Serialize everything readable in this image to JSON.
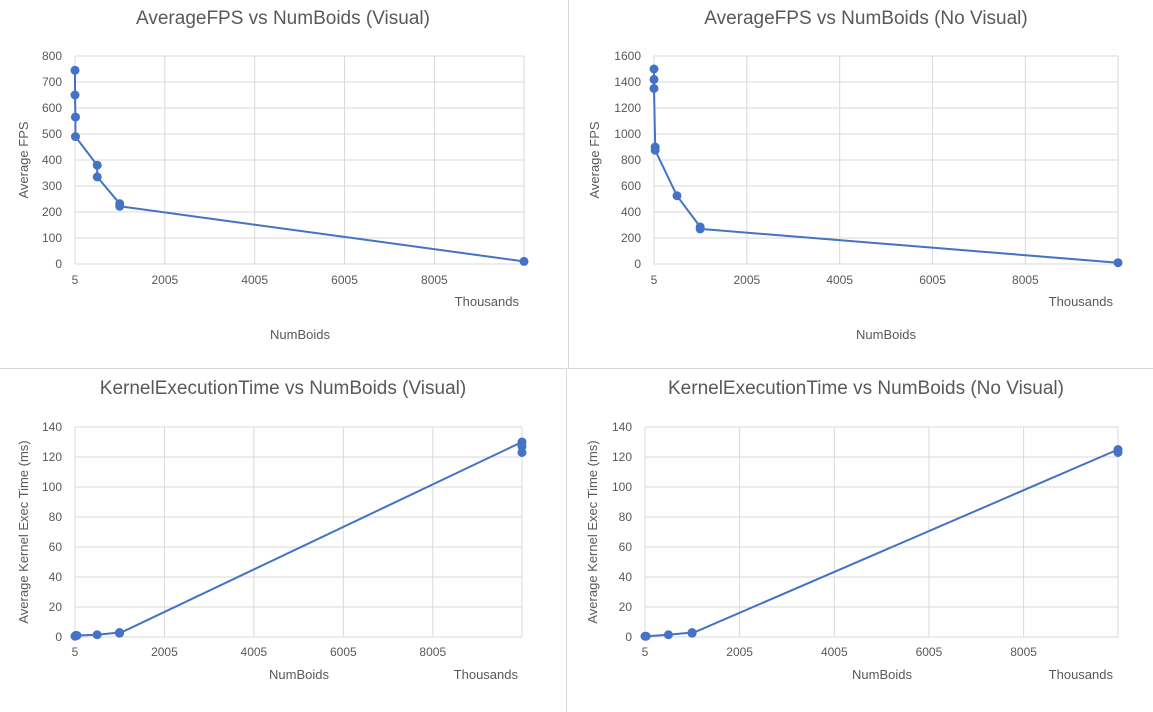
{
  "chart_data": [
    {
      "type": "scatter",
      "title": "AverageFPS vs NumBoids (Visual)",
      "xlabel": "NumBoids",
      "ylabel": "Average FPS",
      "x_unit_label": "Thousands",
      "xlim": [
        5,
        10000
      ],
      "ylim": [
        0,
        800
      ],
      "x_ticks": [
        "5",
        "2005",
        "4005",
        "6005",
        "8005"
      ],
      "y_ticks": [
        "0",
        "100",
        "200",
        "300",
        "400",
        "500",
        "600",
        "700",
        "800"
      ],
      "grid": true,
      "legend": "none",
      "color": "#4472C4",
      "series": [
        {
          "points": [
            [
              5,
              745
            ],
            [
              5,
              650
            ],
            [
              15,
              565
            ],
            [
              15,
              490
            ],
            [
              500,
              380
            ],
            [
              500,
              335
            ],
            [
              1000,
              232
            ],
            [
              1000,
              222
            ],
            [
              10000,
              10
            ]
          ]
        }
      ]
    },
    {
      "type": "scatter",
      "title": "AverageFPS vs NumBoids (No Visual)",
      "xlabel": "NumBoids",
      "ylabel": "Average FPS",
      "x_unit_label": "Thousands",
      "xlim": [
        5,
        10000
      ],
      "ylim": [
        0,
        1600
      ],
      "x_ticks": [
        "5",
        "2005",
        "4005",
        "6005",
        "8005"
      ],
      "y_ticks": [
        "0",
        "200",
        "400",
        "600",
        "800",
        "1000",
        "1200",
        "1400",
        "1600"
      ],
      "grid": true,
      "legend": "none",
      "color": "#4472C4",
      "series": [
        {
          "points": [
            [
              5,
              1500
            ],
            [
              5,
              1420
            ],
            [
              5,
              1350
            ],
            [
              30,
              900
            ],
            [
              30,
              875
            ],
            [
              500,
              525
            ],
            [
              1000,
              285
            ],
            [
              1000,
              270
            ],
            [
              10000,
              10
            ]
          ]
        }
      ]
    },
    {
      "type": "scatter",
      "title": "KernelExecutionTime vs NumBoids (Visual)",
      "xlabel": "NumBoids",
      "ylabel": "Average Kernel Exec Time (ms)",
      "x_unit_label": "Thousands",
      "xlim": [
        5,
        10000
      ],
      "ylim": [
        0,
        140
      ],
      "x_ticks": [
        "5",
        "2005",
        "4005",
        "6005",
        "8005"
      ],
      "y_ticks": [
        "0",
        "20",
        "40",
        "60",
        "80",
        "100",
        "120",
        "140"
      ],
      "grid": true,
      "legend": "none",
      "color": "#4472C4",
      "series": [
        {
          "points": [
            [
              5,
              0.5
            ],
            [
              20,
              1
            ],
            [
              50,
              1
            ],
            [
              500,
              1.5
            ],
            [
              1000,
              3
            ],
            [
              1000,
              2.5
            ],
            [
              10000,
              130
            ],
            [
              10000,
              127
            ],
            [
              10000,
              123
            ]
          ]
        }
      ]
    },
    {
      "type": "scatter",
      "title": "KernelExecutionTime vs NumBoids (No Visual)",
      "xlabel": "NumBoids",
      "ylabel": "Average Kernel Exec Time (ms)",
      "x_unit_label": "Thousands",
      "xlim": [
        5,
        10000
      ],
      "ylim": [
        0,
        140
      ],
      "x_ticks": [
        "5",
        "2005",
        "4005",
        "6005",
        "8005"
      ],
      "y_ticks": [
        "0",
        "20",
        "40",
        "60",
        "80",
        "100",
        "120",
        "140"
      ],
      "grid": true,
      "legend": "none",
      "color": "#4472C4",
      "series": [
        {
          "points": [
            [
              5,
              0.5
            ],
            [
              30,
              0.5
            ],
            [
              500,
              1.5
            ],
            [
              1000,
              3
            ],
            [
              1000,
              2.5
            ],
            [
              10000,
              125
            ],
            [
              10000,
              123
            ]
          ]
        }
      ]
    }
  ]
}
